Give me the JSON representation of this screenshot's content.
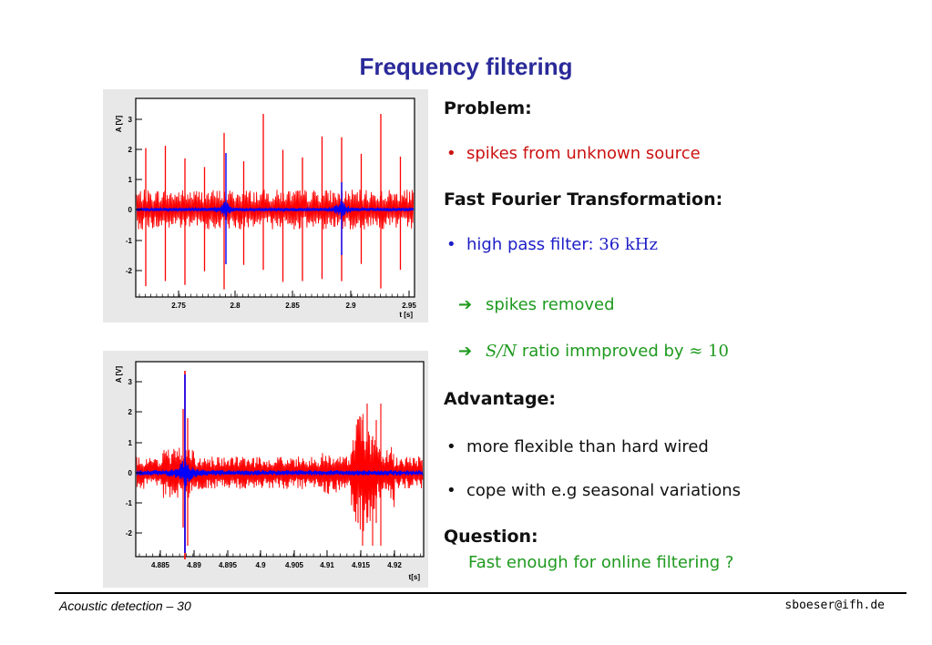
{
  "slide": {
    "title": "Frequency filtering"
  },
  "plots": [
    {
      "ylabel": "A [V]",
      "xlabel": "t [s]",
      "yticks": [
        "-2",
        "-1",
        "0",
        "1",
        "2",
        "3"
      ],
      "xticks": [
        "2.75",
        "2.8",
        "2.85",
        "2.9",
        "2.95"
      ]
    },
    {
      "ylabel": "A [V]",
      "xlabel": "t[s]",
      "yticks": [
        "-2",
        "-1",
        "0",
        "1",
        "2",
        "3"
      ],
      "xticks": [
        "4.885",
        "4.89",
        "4.895",
        "4.9",
        "4.905",
        "4.91",
        "4.915",
        "4.92"
      ]
    }
  ],
  "content": {
    "problem_heading": "Problem:",
    "problem_item": "spikes from unknown source",
    "fft_heading": "Fast Fourier Transformation:",
    "fft_item_text": "high pass filter: ",
    "fft_item_value": "36",
    "fft_item_unit": "kHz",
    "result1": "spikes removed",
    "result2_math": "S/N",
    "result2_text": " ratio immproved by ",
    "result2_approx": "≈ 10",
    "advantage_heading": "Advantage:",
    "advantage_items": [
      "more flexible than hard wired",
      "cope with e.g seasonal variations"
    ],
    "question_heading": "Question:",
    "question_text": "Fast enough for online filtering ?"
  },
  "footer": {
    "left": "Acoustic detection – 30",
    "right": "sboeser@ifh.de"
  },
  "colors": {
    "title": "#2a2a9a",
    "red_signal": "#ff0000",
    "blue_signal": "#0000ff",
    "green_text": "#1e9a1e"
  }
}
